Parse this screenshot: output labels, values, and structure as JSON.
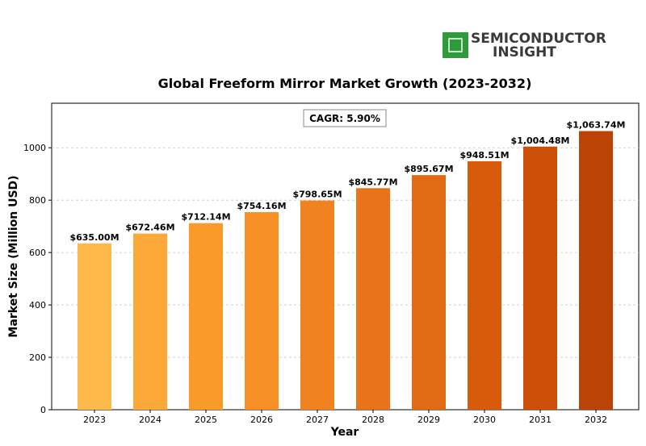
{
  "logo": {
    "line1": "SEMICONDUCTOR",
    "line2": "INSIGHT",
    "icon": "chip-icon",
    "color": "#2e9b3a"
  },
  "chart_data": {
    "type": "bar",
    "title": "Global Freeform Mirror Market Growth (2023-2032)",
    "xlabel": "Year",
    "ylabel": "Market Size (Million USD)",
    "categories": [
      "2023",
      "2024",
      "2025",
      "2026",
      "2027",
      "2028",
      "2029",
      "2030",
      "2031",
      "2032"
    ],
    "values": [
      635.0,
      672.46,
      712.14,
      754.16,
      798.65,
      845.77,
      895.67,
      948.51,
      1004.48,
      1063.74
    ],
    "data_labels": [
      "$635.00M",
      "$672.46M",
      "$712.14M",
      "$754.16M",
      "$798.65M",
      "$845.77M",
      "$895.67M",
      "$948.51M",
      "$1,004.48M",
      "$1,063.74M"
    ],
    "yticks": [
      0,
      200,
      400,
      600,
      800,
      1000
    ],
    "ylim": [
      0,
      1170
    ],
    "grid": true,
    "annotation": "CAGR: 5.90%",
    "colors": [
      "#fdb84a",
      "#fca93a",
      "#f99a2b",
      "#f68f26",
      "#f18220",
      "#e9731a",
      "#e16a14",
      "#d85b0c",
      "#cd4e06",
      "#bb4305"
    ]
  }
}
